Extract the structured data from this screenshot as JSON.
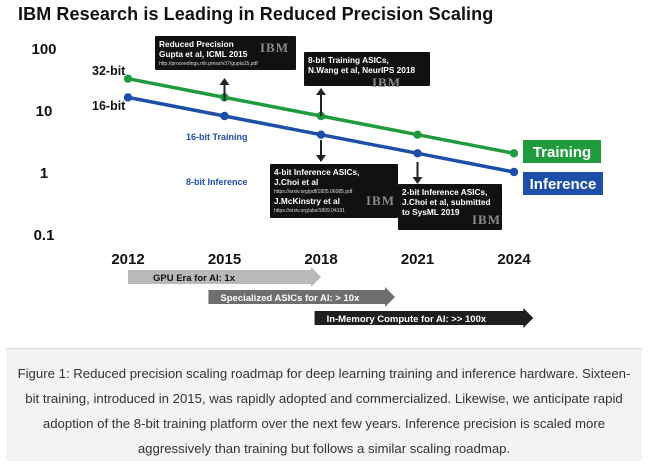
{
  "title": "IBM Research is Leading in Reduced Precision Scaling",
  "chart_data": {
    "type": "line",
    "x": [
      2012,
      2015,
      2018,
      2021,
      2024
    ],
    "y_scale": "log",
    "ylim": [
      0.1,
      100
    ],
    "y_tick_labels": [
      "100",
      "10",
      "1",
      "0.1"
    ],
    "x_tick_labels": [
      "2012",
      "2015",
      "2018",
      "2021",
      "2024"
    ],
    "grid": false,
    "series": [
      {
        "name": "Training",
        "color": "#1f9a3c",
        "values": [
          32,
          16,
          8,
          4,
          2
        ]
      },
      {
        "name": "Inference",
        "color": "#1d4fa8",
        "values": [
          16,
          8,
          4,
          2,
          1
        ]
      }
    ],
    "line_labels": [
      {
        "text": "32-bit",
        "series": 0,
        "point": 0
      },
      {
        "text": "16-bit",
        "series": 1,
        "point": 0
      }
    ],
    "inline_labels": [
      {
        "text": "16-bit Training",
        "color": "#1d4fa8"
      },
      {
        "text": "8-bit Inference",
        "color": "#1d4fa8"
      }
    ],
    "annotations": [
      {
        "lines": [
          "Reduced Precision",
          "Gupta et al, ICML 2015"
        ],
        "url": "http://proceedings.mlr.press/v37/gupta15.pdf",
        "logo": "IBM"
      },
      {
        "lines": [
          "8-bit Training ASICs,",
          "N.Wang et al, NeurIPS 2018"
        ],
        "logo": "IBM"
      },
      {
        "lines": [
          "4-bit Inference ASICs,",
          "J.Choi et al"
        ],
        "url": "https://arxiv.org/pdf/1805.06085.pdf",
        "lines2": [
          "J.McKinstry et al"
        ],
        "url2": "https://arxiv.org/abs/1809.04191",
        "logo": "IBM"
      },
      {
        "lines": [
          "2-bit Inference ASICs,",
          "J.Choi et al, submitted",
          "to SysML 2019"
        ],
        "logo": "IBM"
      }
    ],
    "eras": [
      {
        "label": "GPU Era for AI:  1x",
        "from": 2012,
        "to": 2018,
        "color": "#b9b9b9"
      },
      {
        "label": "Specialized ASICs for AI:  > 10x",
        "from": 2014.5,
        "to": 2020.3,
        "color": "#6e6e6e"
      },
      {
        "label": "In-Memory Compute for AI:  >> 100x",
        "from": 2017.8,
        "to": 2024.6,
        "color": "#1e1e1e"
      }
    ]
  },
  "caption": "Figure 1: Reduced precision scaling roadmap for deep learning training and inference hardware. Sixteen-bit training, introduced in 2015, was rapidly adopted and commercialized. Likewise, we anticipate rapid adoption of the 8-bit training platform over the next few years. Inference precision is scaled more aggressively than training but follows a similar scaling roadmap."
}
